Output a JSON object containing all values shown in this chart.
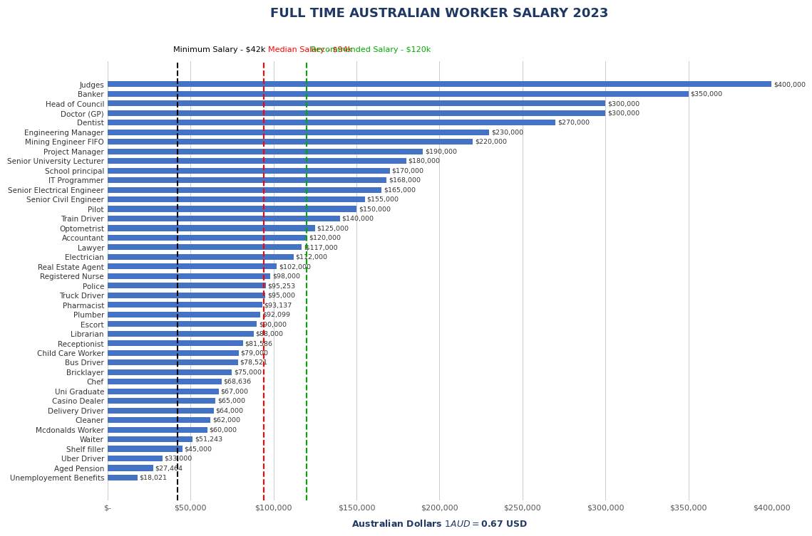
{
  "title": "FULL TIME AUSTRALIAN WORKER SALARY 2023",
  "xlabel": "Australian Dollars $1 AUD = $0.67 USD",
  "jobs": [
    "Judges",
    "Banker",
    "Head of Council",
    "Doctor (GP)",
    "Dentist",
    "Engineering Manager",
    "Mining Engineer FIFO",
    "Project Manager",
    "Senior University Lecturer",
    "School principal",
    "IT Programmer",
    "Senior Electrical Engineer",
    "Senior Civil Engineer",
    "Pilot",
    "Train Driver",
    "Optometrist",
    "Accountant",
    "Lawyer",
    "Electrician",
    "Real Estate Agent",
    "Registered Nurse",
    "Police",
    "Truck Driver",
    "Pharmacist",
    "Plumber",
    "Escort",
    "Librarian",
    "Receptionist",
    "Child Care Worker",
    "Bus Driver",
    "Bricklayer",
    "Chef",
    "Uni Graduate",
    "Casino Dealer",
    "Delivery Driver",
    "Cleaner",
    "Mcdonalds Worker",
    "Waiter",
    "Shelf filler",
    "Uber Driver",
    "Aged Pension",
    "Unemployement Benefits"
  ],
  "salaries": [
    400000,
    350000,
    300000,
    300000,
    270000,
    230000,
    220000,
    190000,
    180000,
    170000,
    168000,
    165000,
    155000,
    150000,
    140000,
    125000,
    120000,
    117000,
    112000,
    102000,
    98000,
    95253,
    95000,
    93137,
    92099,
    90000,
    88000,
    81586,
    79000,
    78521,
    75000,
    68636,
    67000,
    65000,
    64000,
    62000,
    60000,
    51243,
    45000,
    33000,
    27464,
    18021
  ],
  "bar_color": "#4472C4",
  "min_salary": 42000,
  "median_salary": 94000,
  "recommended_salary": 120000,
  "min_color": "#000000",
  "median_color": "#FF0000",
  "recommended_color": "#00AA00",
  "min_label": "Minimum Salary - $42k",
  "median_label": "Median Salary - $94k",
  "recommended_label": "Recommended Salary - $120k",
  "xlim": [
    0,
    400000
  ],
  "xtick_values": [
    0,
    50000,
    100000,
    150000,
    200000,
    250000,
    300000,
    350000,
    400000
  ],
  "xtick_labels": [
    "$-",
    "$50,000",
    "$100,000",
    "$150,000",
    "$200,000",
    "$250,000",
    "$300,000",
    "$350,000",
    "$400,000"
  ],
  "value_labels": [
    "$400,000",
    "$350,000",
    "$300,000",
    "$300,000",
    "$270,000",
    "$230,000",
    "$220,000",
    "$190,000",
    "$180,000",
    "$170,000",
    "$168,000",
    "$165,000",
    "$155,000",
    "$150,000",
    "$140,000",
    "$125,000",
    "$120,000",
    "l$117,000",
    "$112,000",
    "$102,000",
    "$98,000",
    "$95,253",
    "$95,000",
    "$93,137",
    "$92,099",
    "$90,000",
    "$88,000",
    "$81,586",
    "$79,000",
    "$78,521",
    "$75,000",
    "$68,636",
    "$67,000",
    "$65,000",
    "$64,000",
    "$62,000",
    "$60,000",
    "$51,243",
    "$45,000",
    "$33,000",
    "$27,464",
    "$18,021"
  ]
}
